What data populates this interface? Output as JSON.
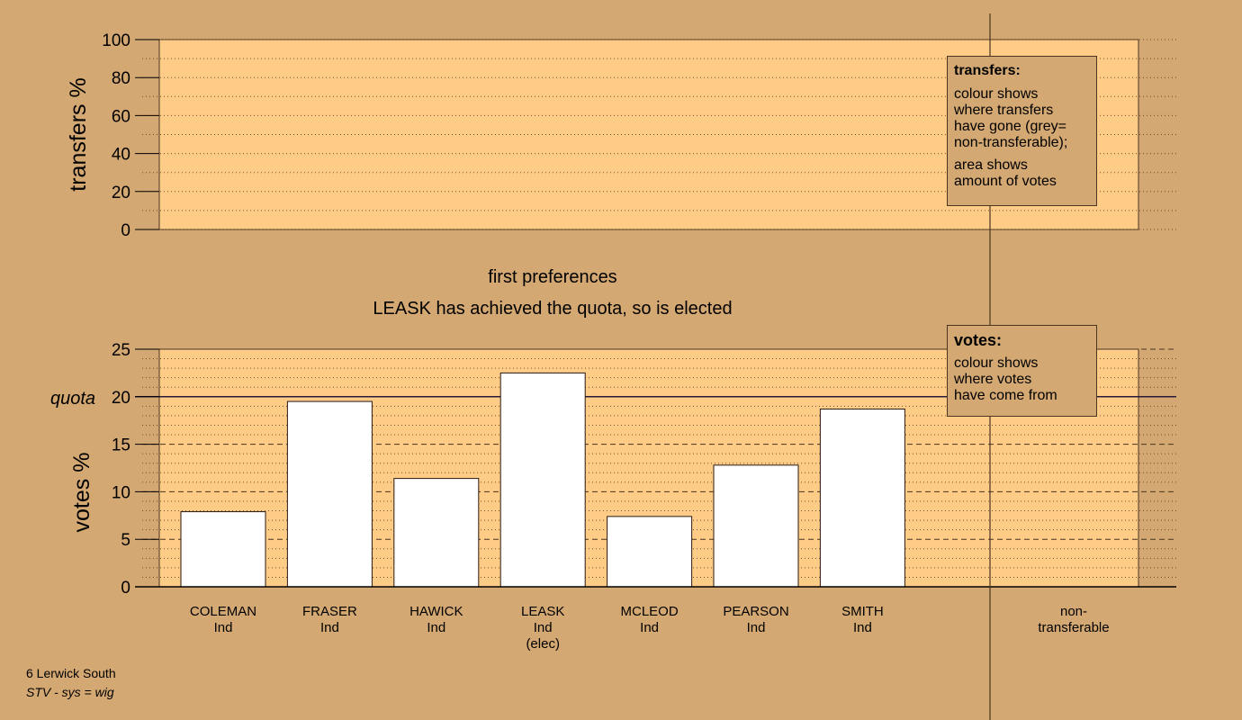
{
  "chart_data": [
    {
      "type": "bar",
      "name": "transfers",
      "ylabel": "transfers %",
      "ylim": [
        0,
        100
      ],
      "yticks": [
        0,
        20,
        40,
        60,
        80,
        100
      ],
      "values": []
    },
    {
      "type": "bar",
      "name": "votes",
      "title": "first preferences",
      "subtitle": "LEASK has achieved the quota, so is elected",
      "ylabel": "votes %",
      "ylim": [
        0,
        25
      ],
      "yticks": [
        0,
        5,
        10,
        15,
        20,
        25
      ],
      "quota": 20,
      "quota_label": "quota",
      "categories": [
        "COLEMAN",
        "FRASER",
        "HAWICK",
        "LEASK",
        "MCLEOD",
        "PEARSON",
        "SMITH"
      ],
      "category_lines": [
        [
          "COLEMAN",
          "Ind"
        ],
        [
          "FRASER",
          "Ind"
        ],
        [
          "HAWICK",
          "Ind"
        ],
        [
          "LEASK",
          "Ind",
          "(elec)"
        ],
        [
          "MCLEOD",
          "Ind"
        ],
        [
          "PEARSON",
          "Ind"
        ],
        [
          "SMITH",
          "Ind"
        ]
      ],
      "values": [
        7.9,
        19.5,
        11.4,
        22.5,
        7.4,
        12.8,
        18.7
      ],
      "nontransferable_lines": [
        "non-",
        "transferable"
      ],
      "grid": true
    }
  ],
  "legend_transfers": {
    "title": "transfers:",
    "line1": [
      "colour shows",
      "where transfers",
      "have gone (grey=",
      "non-transferable);"
    ],
    "line2": [
      "area shows",
      "amount of votes"
    ]
  },
  "legend_votes": {
    "title": "votes:",
    "line1": [
      "colour shows",
      "where votes",
      "have come from"
    ]
  },
  "footer": {
    "ward": "6 Lerwick South",
    "system": "STV - sys = wig"
  },
  "colors": {
    "background": "#d4a872",
    "plot_area": "#ffcc88",
    "bar_fill": "#ffffff",
    "axis": "#000000",
    "quota_line": "#2a1a3a"
  }
}
